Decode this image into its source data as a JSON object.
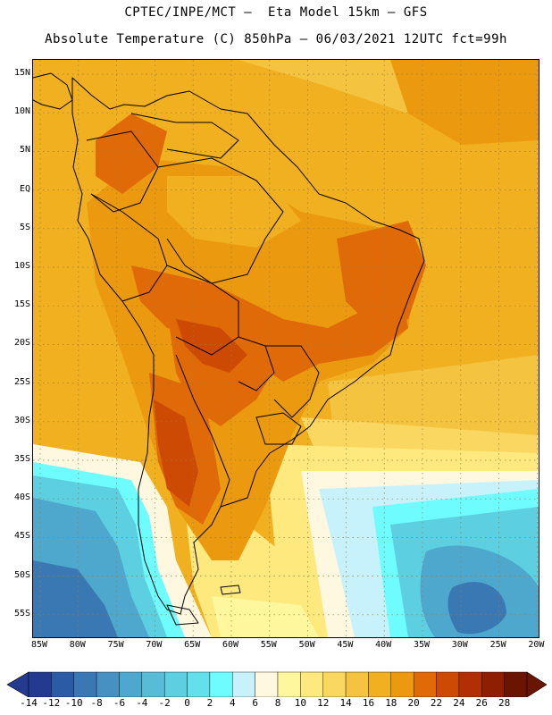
{
  "header": {
    "line1": "CPTEC/INPE/MCT –  Eta Model 15km – GFS",
    "line2": "Absolute Temperature (C) 850hPa – 06/03/2021 12UTC fct=99h"
  },
  "axes": {
    "lat_labels": [
      "15N",
      "10N",
      "5N",
      "EQ",
      "5S",
      "10S",
      "15S",
      "20S",
      "25S",
      "30S",
      "35S",
      "40S",
      "45S",
      "50S",
      "55S"
    ],
    "lon_labels": [
      "85W",
      "80W",
      "75W",
      "70W",
      "65W",
      "60W",
      "55W",
      "50W",
      "45W",
      "40W",
      "35W",
      "30W",
      "25W",
      "20W"
    ],
    "grid": "dotted"
  },
  "colorbar": {
    "labels": [
      "-14",
      "-12",
      "-10",
      "-8",
      "-6",
      "-4",
      "-2",
      "0",
      "2",
      "4",
      "6",
      "8",
      "10",
      "12",
      "14",
      "16",
      "18",
      "20",
      "22",
      "24",
      "26",
      "28"
    ],
    "colors": [
      "#233a8f",
      "#2c5ba5",
      "#3a78b4",
      "#4790c2",
      "#4ea7cd",
      "#58bcd6",
      "#5ccfe1",
      "#63e0ea",
      "#6efcff",
      "#c7f2fb",
      "#fff8e0",
      "#fff79e",
      "#fde97e",
      "#f9d760",
      "#f4c340",
      "#f0b020",
      "#eb9a10",
      "#e06a08",
      "#cd4a05",
      "#b13003",
      "#8f1f02",
      "#6a1402"
    ],
    "arrow_left_color": "#233a8f",
    "arrow_right_color": "#6a1402"
  },
  "map": {
    "region": "South America",
    "variable": "Absolute Temperature (C) 850hPa",
    "palette": {
      "ocean_warm": "#f0b020",
      "warm": "#eb9a10",
      "hot": "#e06a08",
      "hotter": "#cd4a05",
      "mild": "#f4c340",
      "cooler": "#f9d760",
      "cool": "#fde97e",
      "pale": "#fff79e",
      "cream": "#fff8e0",
      "icy": "#c7f2fb",
      "cyan": "#6efcff",
      "lightblue": "#5ccfe1",
      "blue": "#4ea7cd",
      "deepblue": "#3a78b4",
      "coast": "#000000"
    }
  }
}
